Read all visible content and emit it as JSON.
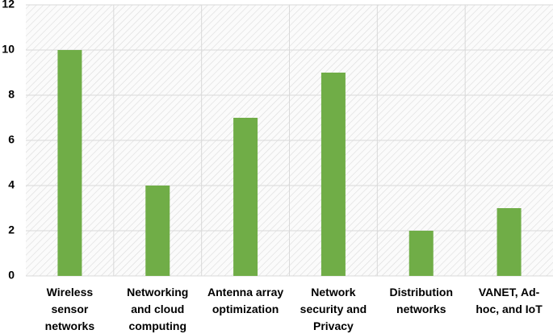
{
  "chart_data": {
    "type": "bar",
    "categories": [
      "Wireless sensor networks",
      "Networking and cloud computing",
      "Antenna array optimization",
      "Network security and Privacy",
      "Distribution networks",
      "VANET, Ad-hoc, and IoT"
    ],
    "values": [
      10,
      4,
      7,
      9,
      2,
      3
    ],
    "color": "#70ad47",
    "ylim": [
      0,
      12
    ],
    "yticks": [
      0,
      2,
      4,
      6,
      8,
      10,
      12
    ],
    "grid": true
  }
}
